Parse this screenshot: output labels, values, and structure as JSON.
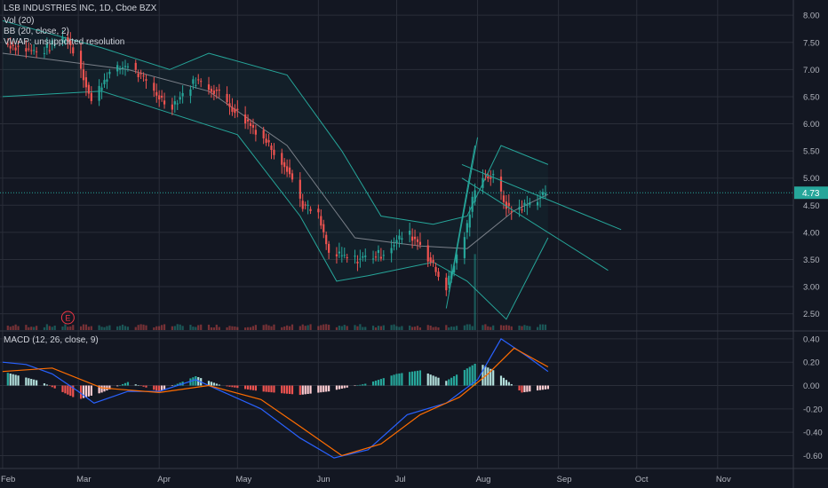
{
  "header": {
    "symbol_line": "LSB INDUSTRIES INC, 1D, Cboe BZX",
    "vol_label": "Vol (20)",
    "bb_label": "BB (20, close, 2)",
    "vwap_label": "VWAP: unsupported resolution",
    "macd_label": "MACD (12, 26, close, 9)"
  },
  "colors": {
    "background": "#131722",
    "up": "#26a69a",
    "down": "#ef5350",
    "bb": "#26a69a",
    "sma": "#9598a1",
    "macd_line": "#2962ff",
    "signal_line": "#ff6d00",
    "trendline": "#26a69a",
    "price_tag": "#26a69a",
    "earnings": "#f23645"
  },
  "chart_data": [
    {
      "type": "candlestick",
      "title": "LSB INDUSTRIES INC, 1D, Cboe BZX",
      "x_axis": {
        "type": "date",
        "ticks": [
          "Feb",
          "Mar",
          "Apr",
          "May",
          "Jun",
          "Jul",
          "Aug",
          "Sep",
          "Oct",
          "Nov"
        ],
        "tick_dates": [
          "2020-02-01",
          "2020-03-01",
          "2020-04-01",
          "2020-05-01",
          "2020-06-01",
          "2020-07-01",
          "2020-08-01",
          "2020-09-01",
          "2020-10-01",
          "2020-11-01"
        ],
        "range": [
          "2020-01-31",
          "2020-11-30"
        ]
      },
      "y_axis": {
        "ticks": [
          "8.00",
          "7.50",
          "7.00",
          "6.50",
          "6.00",
          "5.50",
          "5.00",
          "4.50",
          "4.00",
          "3.50",
          "3.00",
          "2.50"
        ],
        "range": [
          2.2,
          8.15
        ]
      },
      "last_price": "4.73",
      "grid": true,
      "earnings_marker": {
        "label": "E",
        "date": "2020-02-26"
      },
      "ohlc_anchors": [
        {
          "date": "2020-02-01",
          "close": 7.5
        },
        {
          "date": "2020-02-15",
          "close": 7.3
        },
        {
          "date": "2020-02-25",
          "close": 7.6
        },
        {
          "date": "2020-03-01",
          "close": 7.2
        },
        {
          "date": "2020-03-06",
          "close": 6.4
        },
        {
          "date": "2020-03-12",
          "close": 6.9
        },
        {
          "date": "2020-03-20",
          "close": 7.1
        },
        {
          "date": "2020-03-30",
          "close": 6.6
        },
        {
          "date": "2020-04-05",
          "close": 6.3
        },
        {
          "date": "2020-04-15",
          "close": 6.8
        },
        {
          "date": "2020-04-23",
          "close": 6.6
        },
        {
          "date": "2020-05-01",
          "close": 6.2
        },
        {
          "date": "2020-05-10",
          "close": 5.8
        },
        {
          "date": "2020-05-20",
          "close": 5.2
        },
        {
          "date": "2020-05-26",
          "close": 4.5
        },
        {
          "date": "2020-06-01",
          "close": 4.3
        },
        {
          "date": "2020-06-05",
          "close": 3.6
        },
        {
          "date": "2020-06-15",
          "close": 3.5
        },
        {
          "date": "2020-06-25",
          "close": 3.6
        },
        {
          "date": "2020-07-05",
          "close": 4.0
        },
        {
          "date": "2020-07-10",
          "close": 3.8
        },
        {
          "date": "2020-07-17",
          "close": 3.2
        },
        {
          "date": "2020-07-20",
          "close": 3.0
        },
        {
          "date": "2020-07-28",
          "close": 4.1
        },
        {
          "date": "2020-08-01",
          "close": 5.1
        },
        {
          "date": "2020-08-07",
          "close": 5.0
        },
        {
          "date": "2020-08-13",
          "close": 4.4
        },
        {
          "date": "2020-08-20",
          "close": 4.5
        },
        {
          "date": "2020-08-27",
          "close": 4.73
        }
      ],
      "bollinger_upper": [
        {
          "date": "2020-02-01",
          "value": 7.9
        },
        {
          "date": "2020-03-10",
          "value": 7.4
        },
        {
          "date": "2020-04-05",
          "value": 7.0
        },
        {
          "date": "2020-04-20",
          "value": 7.3
        },
        {
          "date": "2020-05-20",
          "value": 6.9
        },
        {
          "date": "2020-06-10",
          "value": 5.5
        },
        {
          "date": "2020-06-25",
          "value": 4.3
        },
        {
          "date": "2020-07-15",
          "value": 4.15
        },
        {
          "date": "2020-07-28",
          "value": 4.3
        },
        {
          "date": "2020-08-10",
          "value": 5.6
        },
        {
          "date": "2020-08-28",
          "value": 5.25
        }
      ],
      "bollinger_middle": [
        {
          "date": "2020-02-01",
          "value": 7.3
        },
        {
          "date": "2020-03-20",
          "value": 7.0
        },
        {
          "date": "2020-04-20",
          "value": 6.6
        },
        {
          "date": "2020-05-20",
          "value": 5.6
        },
        {
          "date": "2020-06-15",
          "value": 3.9
        },
        {
          "date": "2020-07-10",
          "value": 3.75
        },
        {
          "date": "2020-07-28",
          "value": 3.7
        },
        {
          "date": "2020-08-15",
          "value": 4.4
        },
        {
          "date": "2020-08-28",
          "value": 4.7
        }
      ],
      "bollinger_lower": [
        {
          "date": "2020-02-01",
          "value": 6.5
        },
        {
          "date": "2020-03-10",
          "value": 6.6
        },
        {
          "date": "2020-04-05",
          "value": 6.2
        },
        {
          "date": "2020-05-01",
          "value": 5.8
        },
        {
          "date": "2020-05-25",
          "value": 4.3
        },
        {
          "date": "2020-06-08",
          "value": 3.1
        },
        {
          "date": "2020-06-20",
          "value": 3.2
        },
        {
          "date": "2020-07-15",
          "value": 3.45
        },
        {
          "date": "2020-07-28",
          "value": 3.1
        },
        {
          "date": "2020-08-12",
          "value": 2.4
        },
        {
          "date": "2020-08-28",
          "value": 3.9
        }
      ],
      "trendlines": [
        {
          "from": {
            "date": "2020-07-26",
            "value": 5.25
          },
          "to": {
            "date": "2020-09-25",
            "value": 4.05
          }
        },
        {
          "from": {
            "date": "2020-07-26",
            "value": 5.0
          },
          "to": {
            "date": "2020-09-20",
            "value": 3.3
          }
        },
        {
          "from": {
            "date": "2020-07-20",
            "value": 2.6
          },
          "to": {
            "date": "2020-08-01",
            "value": 5.75
          }
        },
        {
          "from": {
            "date": "2020-07-21",
            "value": 2.9
          },
          "to": {
            "date": "2020-07-31",
            "value": 5.6
          }
        }
      ]
    },
    {
      "type": "bar",
      "title": "Vol (20)",
      "volume_spike": {
        "date": "2020-07-31",
        "relative": 1.0
      },
      "baseline_relative": 0.06
    },
    {
      "type": "macd",
      "title": "MACD (12, 26, close, 9)",
      "y_axis": {
        "ticks": [
          "0.40",
          "0.20",
          "0.00",
          "-0.20",
          "-0.40",
          "-0.60"
        ],
        "range": [
          -0.68,
          0.46
        ]
      },
      "macd_line": [
        {
          "date": "2020-02-01",
          "value": 0.2
        },
        {
          "date": "2020-02-10",
          "value": 0.18
        },
        {
          "date": "2020-02-20",
          "value": 0.1
        },
        {
          "date": "2020-03-01",
          "value": -0.05
        },
        {
          "date": "2020-03-07",
          "value": -0.15
        },
        {
          "date": "2020-03-20",
          "value": -0.05
        },
        {
          "date": "2020-04-01",
          "value": -0.05
        },
        {
          "date": "2020-04-15",
          "value": 0.05
        },
        {
          "date": "2020-04-25",
          "value": -0.05
        },
        {
          "date": "2020-05-10",
          "value": -0.2
        },
        {
          "date": "2020-05-25",
          "value": -0.45
        },
        {
          "date": "2020-06-07",
          "value": -0.62
        },
        {
          "date": "2020-06-20",
          "value": -0.55
        },
        {
          "date": "2020-07-05",
          "value": -0.25
        },
        {
          "date": "2020-07-20",
          "value": -0.15
        },
        {
          "date": "2020-08-01",
          "value": 0.05
        },
        {
          "date": "2020-08-10",
          "value": 0.4
        },
        {
          "date": "2020-08-20",
          "value": 0.25
        },
        {
          "date": "2020-08-28",
          "value": 0.12
        }
      ],
      "signal_line": [
        {
          "date": "2020-02-01",
          "value": 0.12
        },
        {
          "date": "2020-02-20",
          "value": 0.15
        },
        {
          "date": "2020-03-10",
          "value": -0.02
        },
        {
          "date": "2020-04-01",
          "value": -0.06
        },
        {
          "date": "2020-04-20",
          "value": 0.0
        },
        {
          "date": "2020-05-10",
          "value": -0.12
        },
        {
          "date": "2020-05-25",
          "value": -0.35
        },
        {
          "date": "2020-06-10",
          "value": -0.6
        },
        {
          "date": "2020-06-25",
          "value": -0.5
        },
        {
          "date": "2020-07-10",
          "value": -0.25
        },
        {
          "date": "2020-07-25",
          "value": -0.1
        },
        {
          "date": "2020-08-05",
          "value": 0.1
        },
        {
          "date": "2020-08-15",
          "value": 0.32
        },
        {
          "date": "2020-08-28",
          "value": 0.16
        }
      ],
      "histogram": [
        {
          "date": "2020-02-01",
          "value": 0.12
        },
        {
          "date": "2020-02-15",
          "value": 0.04
        },
        {
          "date": "2020-03-01",
          "value": -0.12
        },
        {
          "date": "2020-03-10",
          "value": -0.06
        },
        {
          "date": "2020-03-20",
          "value": 0.03
        },
        {
          "date": "2020-04-01",
          "value": -0.05
        },
        {
          "date": "2020-04-15",
          "value": 0.08
        },
        {
          "date": "2020-04-25",
          "value": 0.0
        },
        {
          "date": "2020-05-10",
          "value": -0.05
        },
        {
          "date": "2020-05-25",
          "value": -0.08
        },
        {
          "date": "2020-06-05",
          "value": -0.05
        },
        {
          "date": "2020-06-20",
          "value": 0.02
        },
        {
          "date": "2020-07-01",
          "value": 0.1
        },
        {
          "date": "2020-07-10",
          "value": 0.13
        },
        {
          "date": "2020-07-20",
          "value": 0.04
        },
        {
          "date": "2020-08-01",
          "value": 0.2
        },
        {
          "date": "2020-08-08",
          "value": 0.12
        },
        {
          "date": "2020-08-18",
          "value": -0.06
        },
        {
          "date": "2020-08-28",
          "value": -0.03
        }
      ]
    }
  ]
}
